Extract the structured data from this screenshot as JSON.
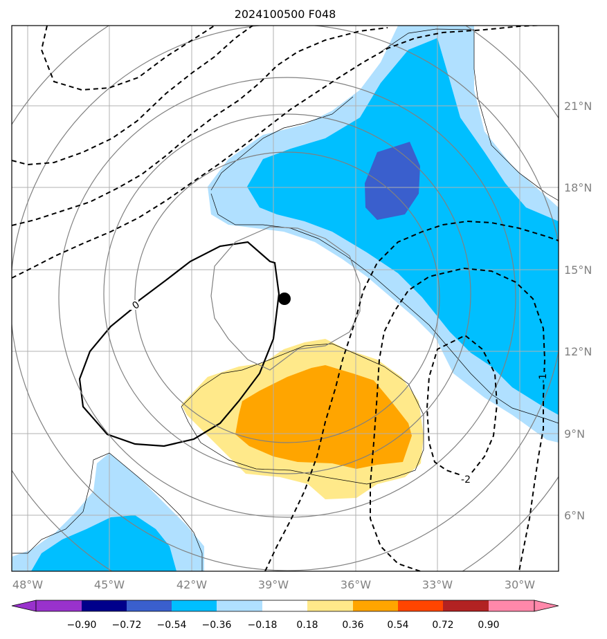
{
  "title": "2024100500 F048",
  "lon_labels": [
    "48°W",
    "45°W",
    "42°W",
    "39°W",
    "36°W",
    "33°W",
    "30°W"
  ],
  "lat_labels": [
    "21°N",
    "18°N",
    "15°N",
    "12°N",
    "9°N",
    "6°N"
  ],
  "colorbar": {
    "tick_labels": [
      "−0.90",
      "−0.72",
      "−0.54",
      "−0.36",
      "−0.18",
      "0.18",
      "0.36",
      "0.54",
      "0.72",
      "0.90"
    ],
    "colors": [
      "#9932cc",
      "#00008b",
      "#3a5fcd",
      "#00bfff",
      "#b0e0ff",
      "#ffffff",
      "#ffe98a",
      "#ffa500",
      "#ff4500",
      "#b22222",
      "#ff88aa"
    ]
  },
  "contour_labels": [
    "0",
    "-1",
    "-2"
  ],
  "colors": {
    "light_blue": "#b0e0ff",
    "blue": "#00bfff",
    "dark_blue": "#3a5fcd",
    "light_yellow": "#ffe98a",
    "orange": "#ffa500",
    "grid": "#b0b0b0"
  }
}
